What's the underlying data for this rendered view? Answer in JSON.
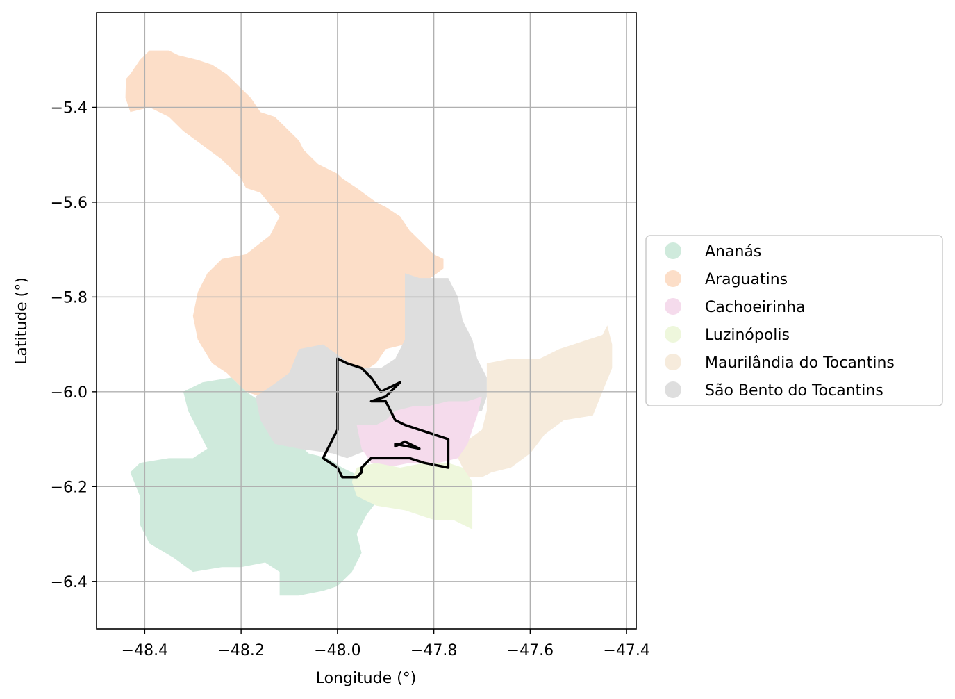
{
  "map": {
    "xlabel": "Longitude (°)",
    "ylabel": "Latitude (°)",
    "xlim": [
      -48.5,
      -47.38
    ],
    "ylim": [
      -6.5,
      -5.2
    ],
    "xticks": [
      -48.4,
      -48.2,
      -48.0,
      -47.8,
      -47.6,
      -47.4
    ],
    "yticks": [
      -6.4,
      -6.2,
      -6.0,
      -5.8,
      -5.6,
      -5.4
    ],
    "xtick_labels": [
      "−48.4",
      "−48.2",
      "−48.0",
      "−47.8",
      "−47.6",
      "−47.4"
    ],
    "ytick_labels": [
      "−6.4",
      "−6.2",
      "−6.0",
      "−5.8",
      "−5.6",
      "−5.4"
    ],
    "grid": true,
    "legend_position": "right",
    "legend": [
      {
        "label": "Ananás",
        "color": "#cfeadc"
      },
      {
        "label": "Araguatins",
        "color": "#fcdec8"
      },
      {
        "label": "Cachoeirinha",
        "color": "#f5dbec"
      },
      {
        "label": "Luzinópolis",
        "color": "#eef7dc"
      },
      {
        "label": "Maurilândia do Tocantins",
        "color": "#f6ebdc"
      },
      {
        "label": "São Bento do Tocantins",
        "color": "#dedede"
      }
    ],
    "outline_color": "#000000"
  },
  "chart_data": {
    "type": "choropleth",
    "regions": [
      {
        "name": "Araguatins",
        "color": "#fcdec8",
        "polygon": [
          [
            -48.439,
            -5.34
          ],
          [
            -48.43,
            -5.33
          ],
          [
            -48.41,
            -5.3
          ],
          [
            -48.39,
            -5.28
          ],
          [
            -48.35,
            -5.28
          ],
          [
            -48.33,
            -5.29
          ],
          [
            -48.29,
            -5.3
          ],
          [
            -48.26,
            -5.31
          ],
          [
            -48.23,
            -5.33
          ],
          [
            -48.21,
            -5.35
          ],
          [
            -48.18,
            -5.38
          ],
          [
            -48.16,
            -5.41
          ],
          [
            -48.13,
            -5.42
          ],
          [
            -48.11,
            -5.44
          ],
          [
            -48.08,
            -5.47
          ],
          [
            -48.07,
            -5.49
          ],
          [
            -48.04,
            -5.52
          ],
          [
            -48.0,
            -5.54
          ],
          [
            -47.99,
            -5.55
          ],
          [
            -47.96,
            -5.57
          ],
          [
            -47.92,
            -5.6
          ],
          [
            -47.9,
            -5.61
          ],
          [
            -47.87,
            -5.63
          ],
          [
            -47.85,
            -5.66
          ],
          [
            -47.83,
            -5.68
          ],
          [
            -47.8,
            -5.71
          ],
          [
            -47.78,
            -5.72
          ],
          [
            -47.78,
            -5.74
          ],
          [
            -47.82,
            -5.77
          ],
          [
            -47.86,
            -5.8
          ],
          [
            -47.86,
            -5.9
          ],
          [
            -47.9,
            -5.91
          ],
          [
            -47.92,
            -5.94
          ],
          [
            -47.95,
            -5.96
          ],
          [
            -47.98,
            -5.96
          ],
          [
            -48.05,
            -5.97
          ],
          [
            -48.12,
            -6.0
          ],
          [
            -48.16,
            -6.01
          ],
          [
            -48.19,
            -6.0
          ],
          [
            -48.23,
            -5.96
          ],
          [
            -48.26,
            -5.94
          ],
          [
            -48.29,
            -5.89
          ],
          [
            -48.3,
            -5.84
          ],
          [
            -48.29,
            -5.79
          ],
          [
            -48.27,
            -5.75
          ],
          [
            -48.24,
            -5.72
          ],
          [
            -48.19,
            -5.71
          ],
          [
            -48.14,
            -5.67
          ],
          [
            -48.12,
            -5.63
          ],
          [
            -48.16,
            -5.58
          ],
          [
            -48.19,
            -5.57
          ],
          [
            -48.2,
            -5.55
          ],
          [
            -48.24,
            -5.51
          ],
          [
            -48.28,
            -5.48
          ],
          [
            -48.32,
            -5.45
          ],
          [
            -48.35,
            -5.42
          ],
          [
            -48.39,
            -5.4
          ],
          [
            -48.43,
            -5.41
          ],
          [
            -48.44,
            -5.38
          ]
        ]
      },
      {
        "name": "Ananás",
        "color": "#cfeadc",
        "polygon": [
          [
            -48.22,
            -5.97
          ],
          [
            -48.19,
            -6.0
          ],
          [
            -48.16,
            -6.02
          ],
          [
            -48.12,
            -6.06
          ],
          [
            -48.09,
            -6.1
          ],
          [
            -48.06,
            -6.13
          ],
          [
            -48.02,
            -6.14
          ],
          [
            -47.99,
            -6.16
          ],
          [
            -47.95,
            -6.18
          ],
          [
            -47.93,
            -6.2
          ],
          [
            -47.91,
            -6.22
          ],
          [
            -47.94,
            -6.26
          ],
          [
            -47.96,
            -6.3
          ],
          [
            -47.95,
            -6.34
          ],
          [
            -47.97,
            -6.38
          ],
          [
            -48.0,
            -6.41
          ],
          [
            -48.03,
            -6.42
          ],
          [
            -48.08,
            -6.43
          ],
          [
            -48.12,
            -6.43
          ],
          [
            -48.12,
            -6.38
          ],
          [
            -48.15,
            -6.36
          ],
          [
            -48.2,
            -6.37
          ],
          [
            -48.24,
            -6.37
          ],
          [
            -48.3,
            -6.38
          ],
          [
            -48.34,
            -6.35
          ],
          [
            -48.39,
            -6.32
          ],
          [
            -48.41,
            -6.28
          ],
          [
            -48.41,
            -6.22
          ],
          [
            -48.43,
            -6.17
          ],
          [
            -48.41,
            -6.15
          ],
          [
            -48.35,
            -6.14
          ],
          [
            -48.3,
            -6.14
          ],
          [
            -48.27,
            -6.12
          ],
          [
            -48.29,
            -6.08
          ],
          [
            -48.31,
            -6.04
          ],
          [
            -48.32,
            -6.0
          ],
          [
            -48.28,
            -5.98
          ]
        ]
      },
      {
        "name": "São Bento do Tocantins",
        "color": "#dedede",
        "polygon": [
          [
            -47.86,
            -5.75
          ],
          [
            -47.83,
            -5.76
          ],
          [
            -47.77,
            -5.76
          ],
          [
            -47.75,
            -5.8
          ],
          [
            -47.74,
            -5.85
          ],
          [
            -47.72,
            -5.89
          ],
          [
            -47.71,
            -5.93
          ],
          [
            -47.69,
            -5.97
          ],
          [
            -47.69,
            -6.01
          ],
          [
            -47.7,
            -6.04
          ],
          [
            -47.74,
            -6.05
          ],
          [
            -47.79,
            -6.07
          ],
          [
            -47.83,
            -6.09
          ],
          [
            -47.87,
            -6.11
          ],
          [
            -47.93,
            -6.12
          ],
          [
            -47.98,
            -6.14
          ],
          [
            -48.01,
            -6.13
          ],
          [
            -48.08,
            -6.12
          ],
          [
            -48.13,
            -6.11
          ],
          [
            -48.16,
            -6.06
          ],
          [
            -48.17,
            -6.01
          ],
          [
            -48.14,
            -5.99
          ],
          [
            -48.1,
            -5.96
          ],
          [
            -48.08,
            -5.91
          ],
          [
            -48.03,
            -5.9
          ],
          [
            -47.96,
            -5.95
          ],
          [
            -47.91,
            -5.95
          ],
          [
            -47.88,
            -5.93
          ],
          [
            -47.86,
            -5.89
          ]
        ]
      },
      {
        "name": "Maurilândia do Tocantins",
        "color": "#f6ebdc",
        "polygon": [
          [
            -47.69,
            -5.94
          ],
          [
            -47.64,
            -5.93
          ],
          [
            -47.58,
            -5.93
          ],
          [
            -47.54,
            -5.91
          ],
          [
            -47.51,
            -5.9
          ],
          [
            -47.48,
            -5.89
          ],
          [
            -47.45,
            -5.88
          ],
          [
            -47.44,
            -5.86
          ],
          [
            -47.43,
            -5.9
          ],
          [
            -47.43,
            -5.95
          ],
          [
            -47.45,
            -6.0
          ],
          [
            -47.47,
            -6.05
          ],
          [
            -47.53,
            -6.06
          ],
          [
            -47.57,
            -6.09
          ],
          [
            -47.6,
            -6.13
          ],
          [
            -47.64,
            -6.16
          ],
          [
            -47.68,
            -6.17
          ],
          [
            -47.7,
            -6.18
          ],
          [
            -47.73,
            -6.18
          ],
          [
            -47.75,
            -6.14
          ],
          [
            -47.74,
            -6.11
          ],
          [
            -47.7,
            -6.08
          ],
          [
            -47.69,
            -6.04
          ],
          [
            -47.69,
            -5.99
          ]
        ]
      },
      {
        "name": "Cachoeirinha",
        "color": "#f5dbec",
        "polygon": [
          [
            -47.7,
            -6.01
          ],
          [
            -47.73,
            -6.02
          ],
          [
            -47.77,
            -6.02
          ],
          [
            -47.81,
            -6.03
          ],
          [
            -47.84,
            -6.03
          ],
          [
            -47.88,
            -6.04
          ],
          [
            -47.9,
            -6.06
          ],
          [
            -47.92,
            -6.07
          ],
          [
            -47.96,
            -6.07
          ],
          [
            -47.95,
            -6.12
          ],
          [
            -47.93,
            -6.15
          ],
          [
            -47.9,
            -6.16
          ],
          [
            -47.85,
            -6.15
          ],
          [
            -47.79,
            -6.15
          ],
          [
            -47.75,
            -6.14
          ],
          [
            -47.73,
            -6.11
          ],
          [
            -47.72,
            -6.08
          ],
          [
            -47.71,
            -6.05
          ]
        ]
      },
      {
        "name": "Luzinópolis",
        "color": "#eef7dc",
        "polygon": [
          [
            -47.96,
            -6.16
          ],
          [
            -47.92,
            -6.15
          ],
          [
            -47.87,
            -6.16
          ],
          [
            -47.82,
            -6.15
          ],
          [
            -47.77,
            -6.15
          ],
          [
            -47.74,
            -6.16
          ],
          [
            -47.72,
            -6.19
          ],
          [
            -47.72,
            -6.24
          ],
          [
            -47.72,
            -6.29
          ],
          [
            -47.76,
            -6.27
          ],
          [
            -47.8,
            -6.27
          ],
          [
            -47.86,
            -6.25
          ],
          [
            -47.92,
            -6.24
          ],
          [
            -47.96,
            -6.22
          ],
          [
            -47.97,
            -6.19
          ]
        ]
      }
    ],
    "outline": {
      "polygon": [
        [
          -48.0,
          -5.93
        ],
        [
          -47.98,
          -5.94
        ],
        [
          -47.95,
          -5.95
        ],
        [
          -47.93,
          -5.97
        ],
        [
          -47.91,
          -6.0
        ],
        [
          -47.87,
          -5.98
        ],
        [
          -47.9,
          -6.01
        ],
        [
          -47.93,
          -6.02
        ],
        [
          -47.9,
          -6.02
        ],
        [
          -47.89,
          -6.04
        ],
        [
          -47.88,
          -6.06
        ],
        [
          -47.86,
          -6.07
        ],
        [
          -47.83,
          -6.08
        ],
        [
          -47.8,
          -6.09
        ],
        [
          -47.77,
          -6.1
        ],
        [
          -47.77,
          -6.16
        ],
        [
          -47.82,
          -6.15
        ],
        [
          -47.85,
          -6.14
        ],
        [
          -47.9,
          -6.14
        ],
        [
          -47.93,
          -6.14
        ],
        [
          -47.95,
          -6.16
        ],
        [
          -47.95,
          -6.17
        ],
        [
          -47.96,
          -6.18
        ],
        [
          -47.99,
          -6.18
        ],
        [
          -48.0,
          -6.16
        ],
        [
          -48.03,
          -6.14
        ],
        [
          -48.01,
          -6.1
        ],
        [
          -48.0,
          -6.08
        ],
        [
          -48.0,
          -6.0
        ],
        [
          -48.0,
          -5.93
        ]
      ],
      "island": [
        [
          -47.88,
          -6.11
        ],
        [
          -47.83,
          -6.12
        ],
        [
          -47.86,
          -6.105
        ],
        [
          -47.88,
          -6.115
        ]
      ]
    }
  }
}
